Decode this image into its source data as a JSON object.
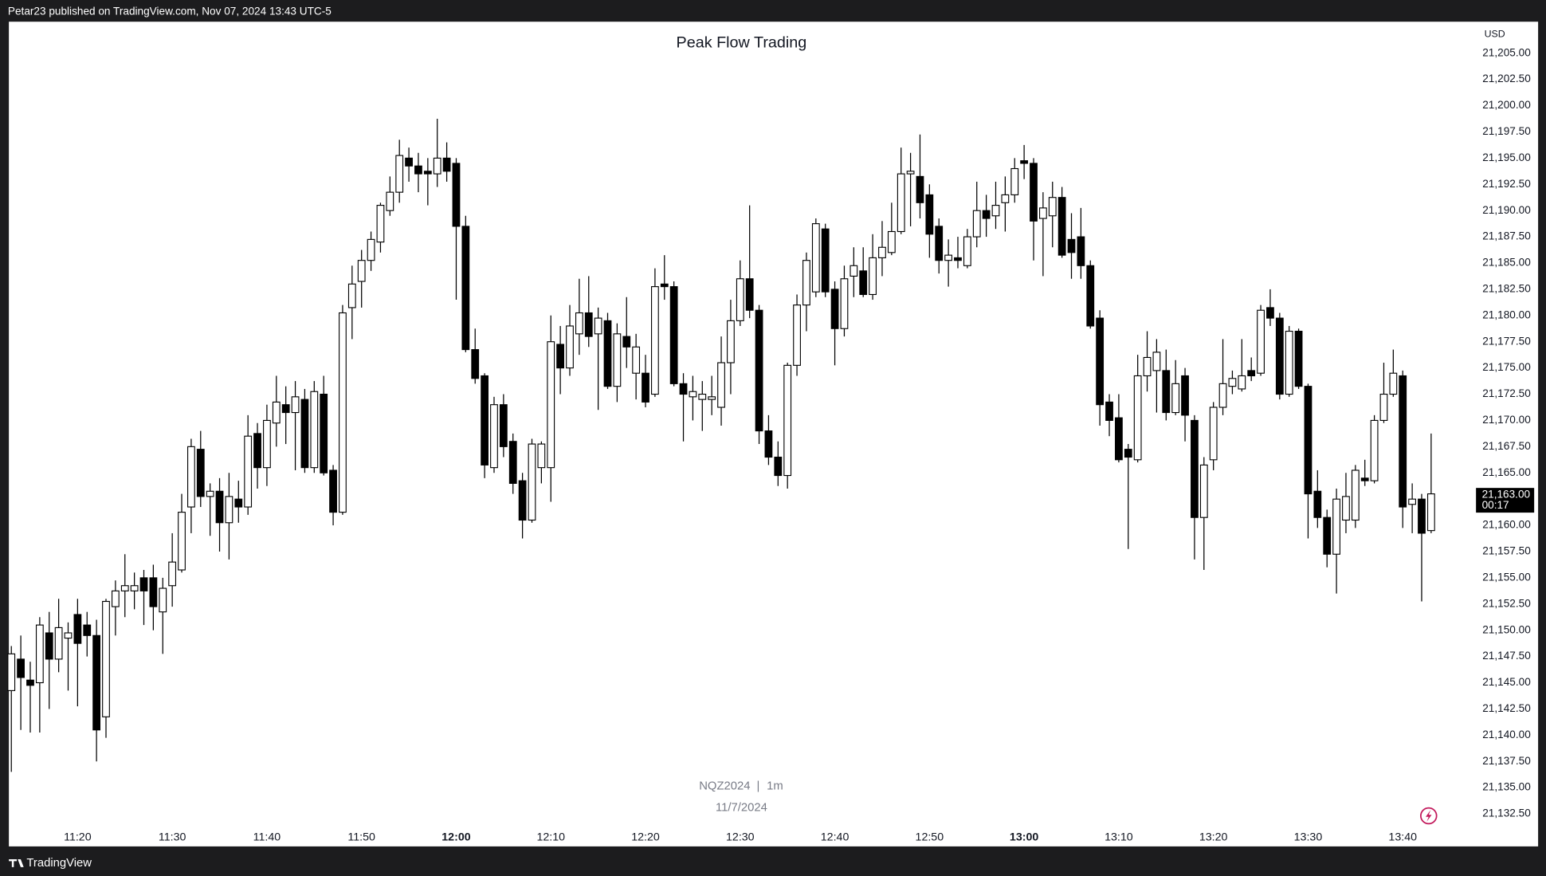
{
  "header": "Petar23 published on TradingView.com, Nov 07, 2024 13:43 UTC-5",
  "footer": "TradingView",
  "chart_data": {
    "type": "candlestick",
    "title": "Peak Flow Trading",
    "symbol": "NQZ2024",
    "separator": "|",
    "interval": "1m",
    "date": "11/7/2024",
    "currency": "USD",
    "up_color": "#ffffff",
    "down_color": "#000000",
    "wick_color": "#000000",
    "categories": [
      null,
      null,
      null,
      null,
      null,
      null,
      null,
      "11:20",
      null,
      null,
      null,
      null,
      null,
      null,
      null,
      null,
      null,
      "11:30",
      null,
      null,
      null,
      null,
      null,
      null,
      null,
      null,
      null,
      "11:40",
      null,
      null,
      null,
      null,
      null,
      null,
      null,
      null,
      null,
      "11:50",
      null,
      null,
      null,
      null,
      null,
      null,
      null,
      null,
      null,
      "12:00",
      null,
      null,
      null,
      null,
      null,
      null,
      null,
      null,
      null,
      "12:10",
      null,
      null,
      null,
      null,
      null,
      null,
      null,
      null,
      null,
      "12:20",
      null,
      null,
      null,
      null,
      null,
      null,
      null,
      null,
      null,
      "12:30",
      null,
      null,
      null,
      null,
      null,
      null,
      null,
      null,
      null,
      "12:40",
      null,
      null,
      null,
      null,
      null,
      null,
      null,
      null,
      null,
      "12:50",
      null,
      null,
      null,
      null,
      null,
      null,
      null,
      null,
      null,
      "13:00",
      null,
      null,
      null,
      null,
      null,
      null,
      null,
      null,
      null,
      "13:10",
      null,
      null,
      null,
      null,
      null,
      null,
      null,
      null,
      null,
      "13:20",
      null,
      null,
      null,
      null,
      null,
      null,
      null,
      null,
      null,
      "13:30",
      null,
      null,
      null,
      null,
      null,
      null,
      null,
      null,
      null,
      "13:40",
      null,
      null,
      null
    ],
    "open": [
      21144.25,
      21147.25,
      21145.25,
      21145,
      21149.75,
      21147.25,
      21149.25,
      21151.5,
      21150.5,
      21149.5,
      21141.75,
      21152.25,
      21153.75,
      21153.75,
      21155,
      21155,
      21151.75,
      21154.25,
      21155.75,
      21161.75,
      21167.25,
      21162.75,
      21163.25,
      21160.25,
      21162.5,
      21161.75,
      21168.75,
      21165.5,
      21169.75,
      21171.5,
      21170.75,
      21172,
      21165.5,
      21172.5,
      21165.25,
      21161.25,
      21180.75,
      21183.25,
      21185.25,
      21187,
      21190,
      21191.75,
      21195,
      21194.25,
      21193.75,
      21193.5,
      21195,
      21194.5,
      21188.5,
      21176.75,
      21174.25,
      21165.5,
      21171.5,
      21168,
      21164.25,
      21160.5,
      21165.5,
      21165.5,
      21177.25,
      21175,
      21178.25,
      21180.25,
      21178.25,
      21179.5,
      21173.25,
      21178,
      21174.5,
      21174.5,
      21172.5,
      21183,
      21182.75,
      21173.5,
      21172.25,
      21172,
      21172,
      21171.25,
      21175.5,
      21179.5,
      21183.5,
      21180.5,
      21169,
      21166.5,
      21164.75,
      21175.25,
      21181,
      21182.25,
      21188.25,
      21182.5,
      21178.75,
      21183.75,
      21184.25,
      21182,
      21185.5,
      21186,
      21188,
      21193.5,
      21193.25,
      21191.5,
      21188.5,
      21185.25,
      21185.5,
      21184.75,
      21187.5,
      21190,
      21189.5,
      21190.75,
      21191.5,
      21194.75,
      21194.5,
      21189.25,
      21189.5,
      21191.25,
      21187.25,
      21187.5,
      21184.75,
      21179.75,
      21171.75,
      21170.25,
      21167.25,
      21166.25,
      21174.25,
      21174.75,
      21174.75,
      21170.75,
      21174.25,
      21170,
      21160.75,
      21166.25,
      21171.25,
      21173.25,
      21173,
      21174.75,
      21174.5,
      21180.75,
      21179.75,
      21172.5,
      21178.5,
      21173.25,
      21163.25,
      21160.75,
      21157.25,
      21160.5,
      21160.5,
      21164.5,
      21164.25,
      21170,
      21172.5,
      21174.25,
      21162,
      21162.5,
      21159.5
    ],
    "high": [
      21148.5,
      21149.5,
      21147,
      21151.25,
      21151.75,
      21153,
      21150.75,
      21153,
      21151.75,
      21151,
      21153,
      21154.75,
      21157.25,
      21155.5,
      21155.75,
      21156.25,
      21155,
      21159.25,
      21163,
      21168.25,
      21169,
      21164,
      21164.5,
      21165,
      21164.25,
      21170.5,
      21169.75,
      21171.5,
      21174.25,
      21173.25,
      21173.75,
      21173,
      21173.75,
      21174.25,
      21165.75,
      21181,
      21184.75,
      21186.25,
      21188,
      21190.75,
      21193.25,
      21196.75,
      21196,
      21195.5,
      21195,
      21198.75,
      21196.5,
      21195,
      21189.5,
      21178.75,
      21174.5,
      21172.25,
      21172.5,
      21168.75,
      21165,
      21168.25,
      21168,
      21180,
      21179,
      21181,
      21183.5,
      21183.75,
      21180.75,
      21180.25,
      21179.25,
      21181.75,
      21178.25,
      21176.25,
      21184.5,
      21185.75,
      21183.25,
      21174.5,
      21174.25,
      21173.75,
      21174.25,
      21178,
      21181.5,
      21185.25,
      21190.5,
      21181,
      21170.5,
      21168,
      21175.5,
      21182,
      21186,
      21189.25,
      21188.75,
      21183.25,
      21184.75,
      21186.5,
      21186.5,
      21187.75,
      21189,
      21190.75,
      21196,
      21195.5,
      21197.25,
      21192.5,
      21189.25,
      21187.25,
      21187.5,
      21188.25,
      21192.75,
      21191.5,
      21192.75,
      21193.25,
      21195,
      21196.25,
      21195,
      21191.75,
      21192.75,
      21192.25,
      21189.75,
      21190.25,
      21185.25,
      21180.5,
      21172.5,
      21172.5,
      21167.75,
      21176.25,
      21178.5,
      21177.75,
      21176.75,
      21175.75,
      21175,
      21170.5,
      21166.5,
      21171.75,
      21177.75,
      21174.75,
      21177.75,
      21176,
      21181,
      21182.5,
      21180.25,
      21179,
      21178.75,
      21173.5,
      21165.25,
      21161.5,
      21163.5,
      21165,
      21165.75,
      21166.25,
      21170.5,
      21175.5,
      21176.75,
      21174.75,
      21164,
      21163,
      21168.75
    ],
    "low": [
      21136.5,
      21140.5,
      21140.25,
      21140.25,
      21142.5,
      21146,
      21144.25,
      21142.75,
      21147.5,
      21137.5,
      21139.75,
      21149.5,
      21151.25,
      21152,
      21150.5,
      21150,
      21147.75,
      21152.25,
      21155.5,
      21159.25,
      21161.75,
      21159,
      21157.5,
      21156.75,
      21160.25,
      21161,
      21163.5,
      21163.75,
      21167.5,
      21167.75,
      21165.25,
      21165,
      21165,
      21164.75,
      21160,
      21161,
      21177.75,
      21180.75,
      21184.25,
      21186,
      21189.5,
      21190.75,
      21192.75,
      21191.75,
      21190.5,
      21192.25,
      21192.75,
      21181.5,
      21176.5,
      21173.5,
      21164.5,
      21165,
      21166.5,
      21163,
      21158.75,
      21160.25,
      21164,
      21162.25,
      21172.5,
      21174.25,
      21176.25,
      21177,
      21171,
      21173,
      21171.75,
      21175,
      21172,
      21171.25,
      21172.25,
      21181.5,
      21173.25,
      21168,
      21170,
      21169,
      21170.5,
      21169.5,
      21172.5,
      21179,
      21179.75,
      21167.75,
      21165.75,
      21163.75,
      21163.5,
      21174.25,
      21178.5,
      21181.75,
      21181.75,
      21175.25,
      21178,
      21181.75,
      21181.75,
      21181.5,
      21183.75,
      21185.75,
      21187.75,
      21188.5,
      21189.25,
      21185.5,
      21184,
      21182.75,
      21184.5,
      21184.5,
      21186.5,
      21187.5,
      21188.25,
      21188,
      21190.75,
      21193,
      21185.25,
      21183.75,
      21186.5,
      21185.5,
      21183.5,
      21183.5,
      21178.75,
      21169.5,
      21168.5,
      21166,
      21157.75,
      21166,
      21172.75,
      21170.75,
      21170,
      21170.5,
      21168,
      21156.75,
      21155.75,
      21165.25,
      21170.5,
      21172.5,
      21172.75,
      21173.75,
      21174.25,
      21179,
      21172,
      21172.25,
      21173,
      21158.75,
      21159.75,
      21156,
      21153.5,
      21159.25,
      21159.75,
      21163.75,
      21164,
      21169.75,
      21172.25,
      21159.75,
      21159.25,
      21152.75,
      21159.25
    ],
    "close": [
      21147.75,
      21145.5,
      21144.75,
      21150.5,
      21147.25,
      21150.25,
      21149.75,
      21148.75,
      21149.5,
      21140.5,
      21152.75,
      21153.75,
      21154.25,
      21154.25,
      21153.75,
      21152.25,
      21154,
      21156.5,
      21161.25,
      21167.5,
      21162.75,
      21163.25,
      21160.25,
      21162.75,
      21161.75,
      21168.5,
      21165.5,
      21170,
      21171.75,
      21170.75,
      21172.25,
      21165.5,
      21172.75,
      21165,
      21161.25,
      21180.25,
      21183,
      21185.25,
      21187.25,
      21190.5,
      21191.75,
      21195.25,
      21194.25,
      21193.5,
      21193.5,
      21195,
      21193.75,
      21188.5,
      21176.75,
      21174,
      21165.75,
      21171.5,
      21167.5,
      21164,
      21160.5,
      21167.75,
      21167.75,
      21177.5,
      21175,
      21179,
      21180.25,
      21178,
      21179.75,
      21173.25,
      21178.25,
      21177,
      21177,
      21171.75,
      21182.75,
      21182.75,
      21173.5,
      21172.5,
      21172.75,
      21172.5,
      21172.25,
      21175.5,
      21179.5,
      21183.5,
      21180.5,
      21169,
      21166.5,
      21164.75,
      21175.25,
      21181,
      21185.25,
      21188.75,
      21182.25,
      21178.75,
      21183.5,
      21184.75,
      21182,
      21185.5,
      21186.5,
      21188,
      21193.5,
      21193.75,
      21190.75,
      21187.75,
      21185.25,
      21185.75,
      21185.25,
      21187.5,
      21190,
      21189.25,
      21190.5,
      21191.5,
      21194,
      21194.5,
      21189,
      21190.25,
      21191.25,
      21185.75,
      21186,
      21184.75,
      21179,
      21171.5,
      21170,
      21166.25,
      21166.5,
      21174.25,
      21176,
      21176.5,
      21170.75,
      21173.5,
      21170.5,
      21160.75,
      21165.75,
      21171.25,
      21173.5,
      21174,
      21174.25,
      21174.25,
      21180.5,
      21179.75,
      21172.5,
      21178.5,
      21173.25,
      21163,
      21160.75,
      21157.25,
      21162.5,
      21162.75,
      21165.25,
      21164.25,
      21170,
      21172.5,
      21174.5,
      21161.75,
      21162.5,
      21159.25,
      21163
    ],
    "ylim": [
      21129.4,
      21208
    ],
    "yticks": [
      {
        "value": 21132.5,
        "label": "21,132.50"
      },
      {
        "value": 21135,
        "label": "21,135.00"
      },
      {
        "value": 21137.5,
        "label": "21,137.50"
      },
      {
        "value": 21140,
        "label": "21,140.00"
      },
      {
        "value": 21142.5,
        "label": "21,142.50"
      },
      {
        "value": 21145,
        "label": "21,145.00"
      },
      {
        "value": 21147.5,
        "label": "21,147.50"
      },
      {
        "value": 21150,
        "label": "21,150.00"
      },
      {
        "value": 21152.5,
        "label": "21,152.50"
      },
      {
        "value": 21155,
        "label": "21,155.00"
      },
      {
        "value": 21157.5,
        "label": "21,157.50"
      },
      {
        "value": 21160,
        "label": "21,160.00"
      },
      {
        "value": 21162.5,
        "label": "21,162.50"
      },
      {
        "value": 21165,
        "label": "21,165.00"
      },
      {
        "value": 21167.5,
        "label": "21,167.50"
      },
      {
        "value": 21170,
        "label": "21,170.00"
      },
      {
        "value": 21172.5,
        "label": "21,172.50"
      },
      {
        "value": 21175,
        "label": "21,175.00"
      },
      {
        "value": 21177.5,
        "label": "21,177.50"
      },
      {
        "value": 21180,
        "label": "21,180.00"
      },
      {
        "value": 21182.5,
        "label": "21,182.50"
      },
      {
        "value": 21185,
        "label": "21,185.00"
      },
      {
        "value": 21187.5,
        "label": "21,187.50"
      },
      {
        "value": 21190,
        "label": "21,190.00"
      },
      {
        "value": 21192.5,
        "label": "21,192.50"
      },
      {
        "value": 21195,
        "label": "21,195.00"
      },
      {
        "value": 21197.5,
        "label": "21,197.50"
      },
      {
        "value": 21200,
        "label": "21,200.00"
      },
      {
        "value": 21202.5,
        "label": "21,202.50"
      },
      {
        "value": 21205,
        "label": "21,205.00"
      }
    ],
    "last_price": {
      "value": 21163,
      "label": "21,163.00"
    },
    "countdown": "00:17",
    "grid": false
  }
}
